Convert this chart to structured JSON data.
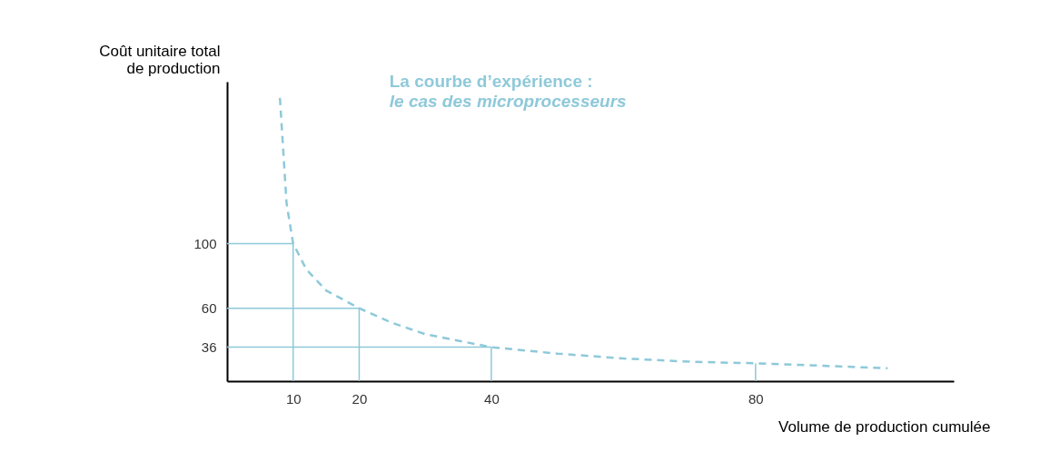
{
  "chart_data": {
    "type": "line",
    "title": "La courbe d’expérience :",
    "subtitle": "le cas des microprocesseurs",
    "xlabel": "Volume de production cumulée",
    "ylabel": "Coût unitaire total\nde production",
    "xlim": [
      0,
      110
    ],
    "ylim": [
      15,
      200
    ],
    "xticks": [
      10,
      20,
      40,
      80
    ],
    "yticks": [
      36,
      60,
      100
    ],
    "grid": false,
    "series": [
      {
        "color": "#8ec9d9",
        "line_style": "dashed",
        "x": [
          8,
          9,
          10,
          12,
          15,
          20,
          25,
          30,
          40,
          50,
          60,
          70,
          80,
          90,
          100
        ],
        "values": [
          190,
          125,
          100,
          84,
          71,
          60,
          51,
          44,
          36,
          32,
          29,
          27,
          26,
          24.5,
          23
        ]
      },
      {
        "color": "#8ec9d9",
        "line_style": "solid",
        "x": [
          0,
          10,
          10
        ],
        "values": [
          100,
          100,
          15
        ]
      },
      {
        "color": "#8ec9d9",
        "line_style": "solid",
        "x": [
          0,
          20,
          20
        ],
        "values": [
          60,
          60,
          15
        ]
      },
      {
        "color": "#8ec9d9",
        "line_style": "solid",
        "x": [
          0,
          40,
          40
        ],
        "values": [
          36,
          36,
          15
        ]
      },
      {
        "color": "#8ec9d9",
        "line_style": "solid",
        "x": [
          80,
          80
        ],
        "values": [
          26,
          15
        ]
      }
    ]
  }
}
